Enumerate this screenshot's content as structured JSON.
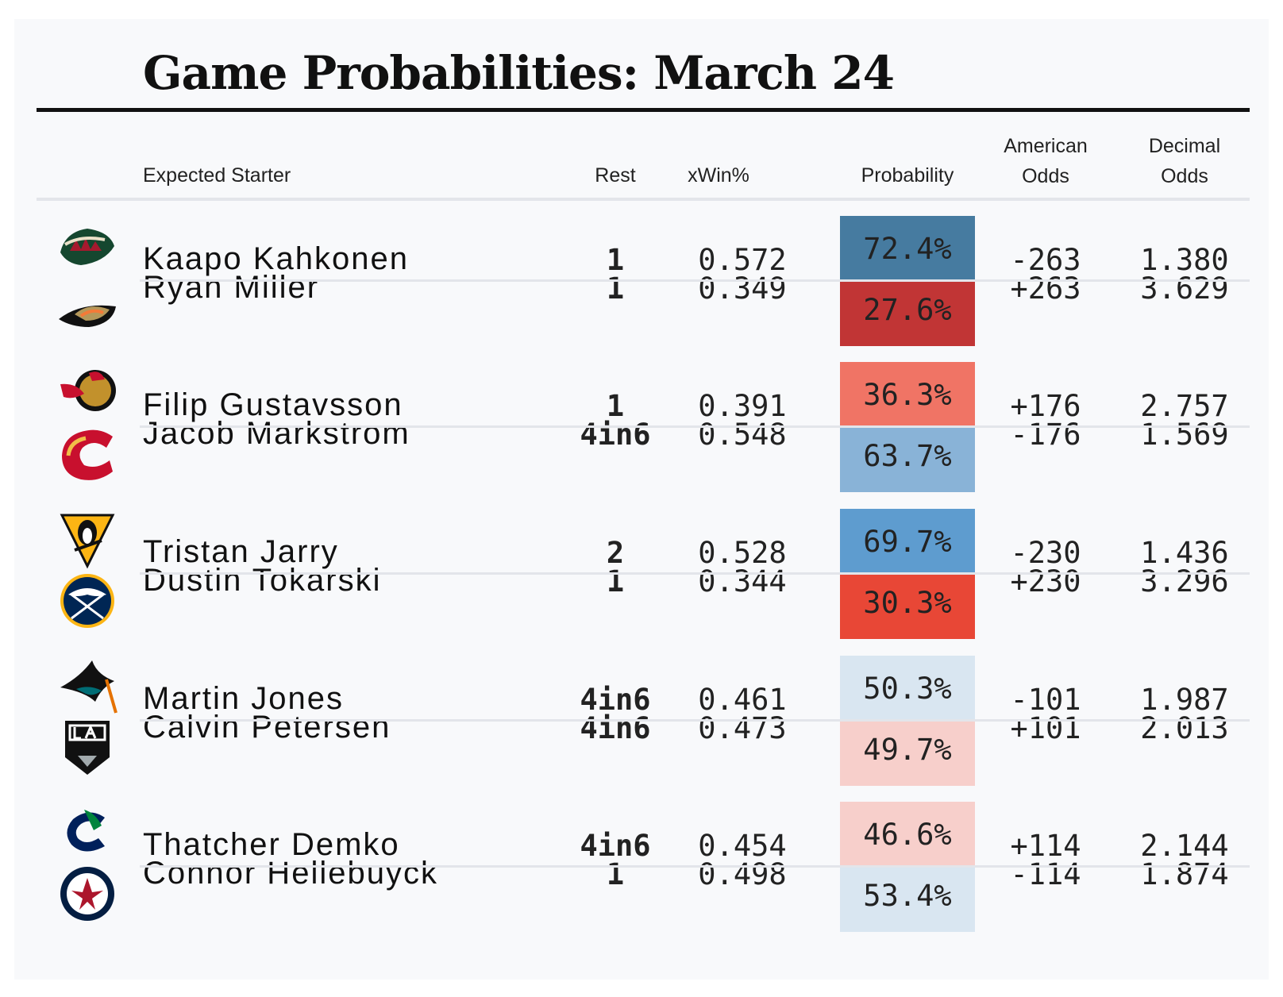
{
  "title": "Game Probabilities: March 24",
  "headers": {
    "starter": "Expected Starter",
    "rest": "Rest",
    "xwin": "xWin%",
    "probability": "Probability",
    "american": [
      "American",
      "Odds"
    ],
    "decimal": [
      "Decimal",
      "Odds"
    ]
  },
  "games": [
    {
      "teams": [
        {
          "logo": "minnesota-wild-logo",
          "starter": "Kaapo Kahkonen",
          "rest": "1",
          "xwin": "0.572",
          "probability": "72.4%",
          "prob_color": "#467ba0",
          "american": "-263",
          "decimal": "1.380"
        },
        {
          "logo": "anaheim-ducks-logo",
          "starter": "Ryan Miller",
          "rest": "1",
          "xwin": "0.349",
          "probability": "27.6%",
          "prob_color": "#c13535",
          "american": "+263",
          "decimal": "3.629"
        }
      ]
    },
    {
      "teams": [
        {
          "logo": "ottawa-senators-logo",
          "starter": "Filip Gustavsson",
          "rest": "1",
          "xwin": "0.391",
          "probability": "36.3%",
          "prob_color": "#f07465",
          "american": "+176",
          "decimal": "2.757"
        },
        {
          "logo": "calgary-flames-logo",
          "starter": "Jacob Markstrom",
          "rest": "4in6",
          "xwin": "0.548",
          "probability": "63.7%",
          "prob_color": "#89b3d7",
          "american": "-176",
          "decimal": "1.569"
        }
      ]
    },
    {
      "teams": [
        {
          "logo": "pittsburgh-penguins-logo",
          "starter": "Tristan Jarry",
          "rest": "2",
          "xwin": "0.528",
          "probability": "69.7%",
          "prob_color": "#5e9ccf",
          "american": "-230",
          "decimal": "1.436"
        },
        {
          "logo": "buffalo-sabres-logo",
          "starter": "Dustin Tokarski",
          "rest": "1",
          "xwin": "0.344",
          "probability": "30.3%",
          "prob_color": "#e84736",
          "american": "+230",
          "decimal": "3.296"
        }
      ]
    },
    {
      "teams": [
        {
          "logo": "san-jose-sharks-logo",
          "starter": "Martin Jones",
          "rest": "4in6",
          "xwin": "0.461",
          "probability": "50.3%",
          "prob_color": "#d9e6f1",
          "american": "-101",
          "decimal": "1.987"
        },
        {
          "logo": "los-angeles-kings-logo",
          "starter": "Calvin Petersen",
          "rest": "4in6",
          "xwin": "0.473",
          "probability": "49.7%",
          "prob_color": "#f7cfcb",
          "american": "+101",
          "decimal": "2.013"
        }
      ]
    },
    {
      "teams": [
        {
          "logo": "vancouver-canucks-logo",
          "starter": "Thatcher Demko",
          "rest": "4in6",
          "xwin": "0.454",
          "probability": "46.6%",
          "prob_color": "#f7cfcb",
          "american": "+114",
          "decimal": "2.144"
        },
        {
          "logo": "winnipeg-jets-logo",
          "starter": "Connor Hellebuyck",
          "rest": "1",
          "xwin": "0.498",
          "probability": "53.4%",
          "prob_color": "#d9e6f1",
          "american": "-114",
          "decimal": "1.874"
        }
      ]
    }
  ]
}
